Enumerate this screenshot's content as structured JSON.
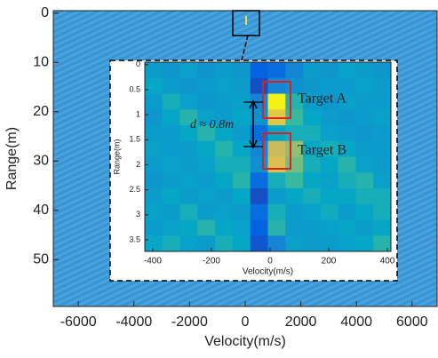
{
  "chart_data": [
    {
      "type": "heatmap",
      "xlabel": "Velocity(m/s)",
      "ylabel": "Range(m)",
      "xlim": [
        -6900,
        6900
      ],
      "ylim": [
        -0.5,
        59.5
      ],
      "y_reversed": true,
      "xticks": [
        -6000,
        -4000,
        -2000,
        0,
        2000,
        4000,
        6000
      ],
      "yticks": [
        0,
        10,
        20,
        30,
        40,
        50
      ],
      "color": "#3d9ad8"
    },
    {
      "type": "heatmap",
      "xlabel": "Velocity(m/s)",
      "ylabel": "Range(m)",
      "xlim": [
        -427,
        412
      ],
      "ylim": [
        -0.05,
        3.73
      ],
      "y_reversed": true,
      "xticks": [
        -400,
        -200,
        0,
        200,
        400
      ],
      "yticks": [
        0,
        0.5,
        1,
        1.5,
        2,
        2.5,
        3,
        3.5
      ],
      "colormap": "parula",
      "annotations": [
        "Target A",
        "Target B",
        "d ≈ 0.8m"
      ],
      "values": [
        [
          0.4,
          0.38,
          0.42,
          0.36,
          0.4,
          0.38,
          0.15,
          0.2,
          0.3,
          0.4,
          0.38,
          0.42,
          0.4,
          0.38
        ],
        [
          0.45,
          0.4,
          0.38,
          0.4,
          0.42,
          0.4,
          0.1,
          0.3,
          0.35,
          0.38,
          0.4,
          0.4,
          0.42,
          0.4
        ],
        [
          0.4,
          0.5,
          0.42,
          0.38,
          0.4,
          0.42,
          0.3,
          0.98,
          0.55,
          0.4,
          0.38,
          0.42,
          0.4,
          0.4
        ],
        [
          0.38,
          0.45,
          0.55,
          0.42,
          0.4,
          0.45,
          0.35,
          0.9,
          0.6,
          0.45,
          0.4,
          0.38,
          0.4,
          0.42
        ],
        [
          0.4,
          0.4,
          0.45,
          0.55,
          0.45,
          0.4,
          0.2,
          0.45,
          0.5,
          0.5,
          0.42,
          0.4,
          0.38,
          0.4
        ],
        [
          0.42,
          0.4,
          0.4,
          0.45,
          0.55,
          0.45,
          0.3,
          0.85,
          0.75,
          0.45,
          0.5,
          0.45,
          0.4,
          0.4
        ],
        [
          0.4,
          0.42,
          0.4,
          0.42,
          0.5,
          0.5,
          0.35,
          0.88,
          0.7,
          0.5,
          0.45,
          0.55,
          0.42,
          0.4
        ],
        [
          0.38,
          0.4,
          0.42,
          0.4,
          0.45,
          0.55,
          0.2,
          0.5,
          0.6,
          0.45,
          0.42,
          0.5,
          0.55,
          0.42
        ],
        [
          0.4,
          0.45,
          0.4,
          0.42,
          0.4,
          0.45,
          0.1,
          0.4,
          0.45,
          0.5,
          0.45,
          0.45,
          0.5,
          0.5
        ],
        [
          0.42,
          0.4,
          0.5,
          0.4,
          0.42,
          0.4,
          0.2,
          0.5,
          0.4,
          0.42,
          0.48,
          0.4,
          0.45,
          0.5
        ],
        [
          0.4,
          0.42,
          0.45,
          0.55,
          0.45,
          0.42,
          0.15,
          0.55,
          0.4,
          0.4,
          0.42,
          0.45,
          0.4,
          0.45
        ],
        [
          0.45,
          0.5,
          0.42,
          0.4,
          0.5,
          0.45,
          0.12,
          0.3,
          0.42,
          0.4,
          0.4,
          0.42,
          0.45,
          0.55
        ]
      ]
    }
  ]
}
